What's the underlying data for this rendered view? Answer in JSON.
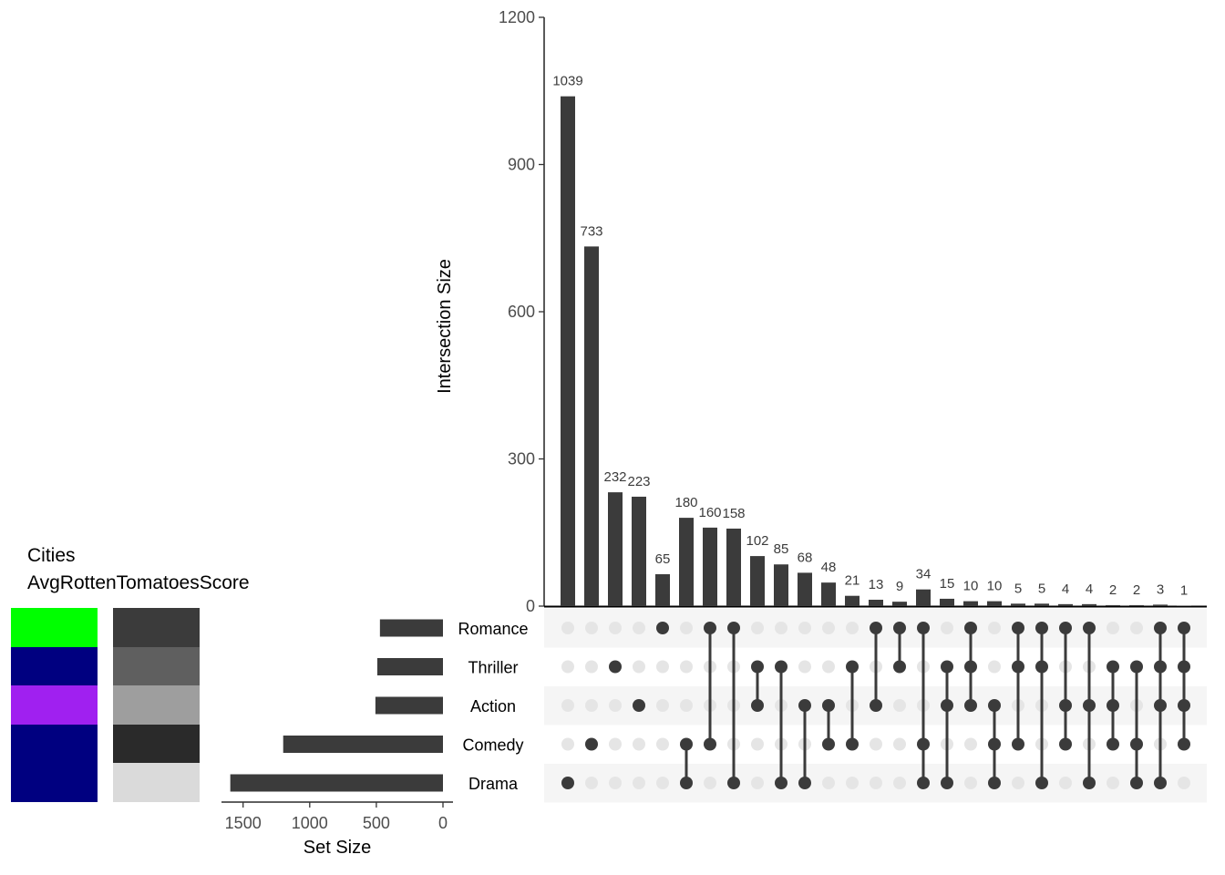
{
  "chart_data": {
    "type": "bar",
    "chart_kind": "upset",
    "title": "",
    "intersection_axis": {
      "ylabel": "Intersection Size",
      "ylim": [
        0,
        1200
      ],
      "ticks": [
        0,
        300,
        600,
        900,
        1200
      ],
      "tick_labels": [
        "0",
        "300",
        "600",
        "900",
        "1200"
      ]
    },
    "sets": [
      "Romance",
      "Thriller",
      "Action",
      "Comedy",
      "Drama"
    ],
    "set_sizes": [
      473,
      493,
      507,
      1199,
      1596
    ],
    "set_size_axis": {
      "xlabel": "Set Size",
      "xlim": [
        1650,
        0
      ],
      "ticks": [
        1500,
        1000,
        500,
        0
      ],
      "tick_labels": [
        "1500",
        "1000",
        "500",
        "0"
      ]
    },
    "intersections": [
      {
        "sets": [
          "Drama"
        ],
        "value": 1039
      },
      {
        "sets": [
          "Comedy"
        ],
        "value": 733
      },
      {
        "sets": [
          "Thriller"
        ],
        "value": 232
      },
      {
        "sets": [
          "Action"
        ],
        "value": 223
      },
      {
        "sets": [
          "Romance"
        ],
        "value": 65
      },
      {
        "sets": [
          "Comedy",
          "Drama"
        ],
        "value": 180
      },
      {
        "sets": [
          "Romance",
          "Comedy"
        ],
        "value": 160
      },
      {
        "sets": [
          "Romance",
          "Drama"
        ],
        "value": 158
      },
      {
        "sets": [
          "Thriller",
          "Action"
        ],
        "value": 102
      },
      {
        "sets": [
          "Thriller",
          "Drama"
        ],
        "value": 85
      },
      {
        "sets": [
          "Action",
          "Drama"
        ],
        "value": 68
      },
      {
        "sets": [
          "Action",
          "Comedy"
        ],
        "value": 48
      },
      {
        "sets": [
          "Thriller",
          "Comedy"
        ],
        "value": 21
      },
      {
        "sets": [
          "Romance",
          "Action"
        ],
        "value": 13
      },
      {
        "sets": [
          "Romance",
          "Thriller"
        ],
        "value": 9
      },
      {
        "sets": [
          "Romance",
          "Comedy",
          "Drama"
        ],
        "value": 34
      },
      {
        "sets": [
          "Thriller",
          "Action",
          "Drama"
        ],
        "value": 15
      },
      {
        "sets": [
          "Romance",
          "Thriller",
          "Action"
        ],
        "value": 10
      },
      {
        "sets": [
          "Action",
          "Comedy",
          "Drama"
        ],
        "value": 10
      },
      {
        "sets": [
          "Romance",
          "Thriller",
          "Comedy"
        ],
        "value": 5
      },
      {
        "sets": [
          "Romance",
          "Thriller",
          "Drama"
        ],
        "value": 5
      },
      {
        "sets": [
          "Romance",
          "Action",
          "Comedy"
        ],
        "value": 4
      },
      {
        "sets": [
          "Romance",
          "Action",
          "Drama"
        ],
        "value": 4
      },
      {
        "sets": [
          "Thriller",
          "Action",
          "Comedy"
        ],
        "value": 2
      },
      {
        "sets": [
          "Thriller",
          "Comedy",
          "Drama"
        ],
        "value": 2
      },
      {
        "sets": [
          "Romance",
          "Thriller",
          "Action",
          "Drama"
        ],
        "value": 3
      },
      {
        "sets": [
          "Romance",
          "Thriller",
          "Action",
          "Comedy"
        ],
        "value": 1
      }
    ],
    "metadata_panels": [
      {
        "title": "Cities",
        "colors": [
          "#00ff00",
          "#000080",
          "#a020f0",
          "#000080",
          "#000080"
        ]
      },
      {
        "title": "AvgRottenTomatoesScore",
        "colors": [
          "#3b3b3b",
          "#5f5f5f",
          "#9e9e9e",
          "#2a2a2a",
          "#dadada"
        ]
      }
    ],
    "colors": {
      "bar": "#3b3b3b",
      "dot_active": "#3b3b3b",
      "dot_inactive": "#e5e5e5",
      "row_shade": "#f5f5f5",
      "axis": "#000000"
    }
  }
}
